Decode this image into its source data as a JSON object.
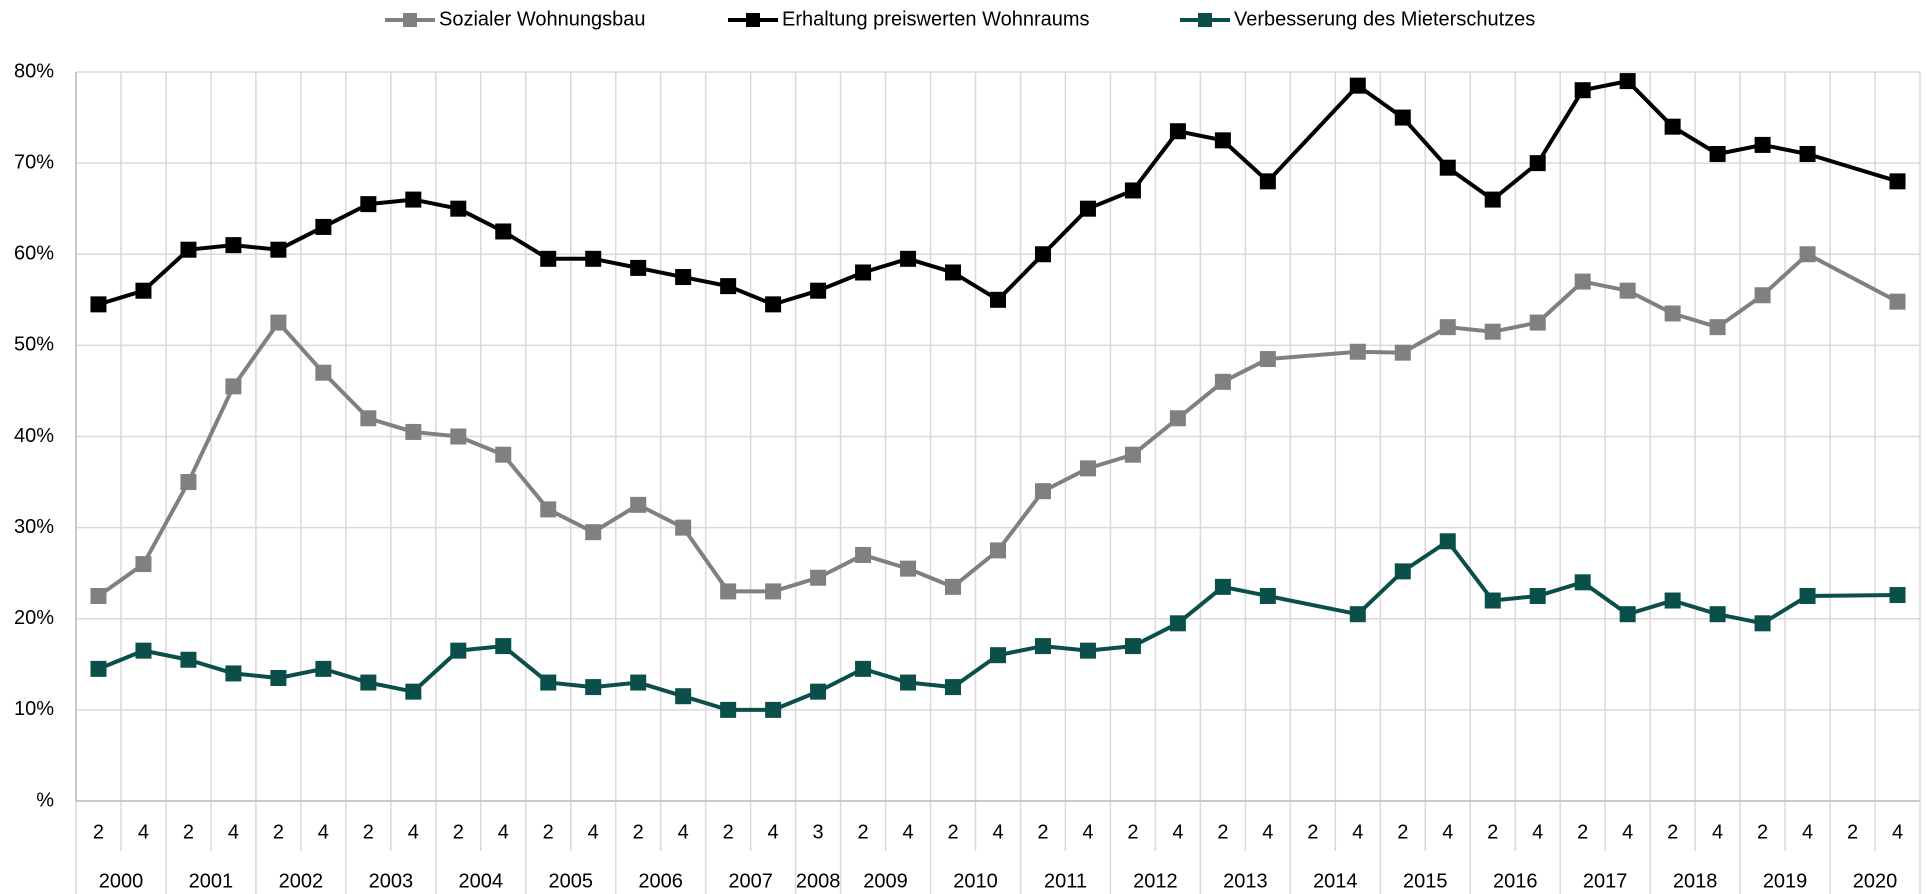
{
  "chart_data": {
    "type": "line",
    "groups": [
      {
        "name": "2000",
        "quarters": [
          "2",
          "4"
        ]
      },
      {
        "name": "2001",
        "quarters": [
          "2",
          "4"
        ]
      },
      {
        "name": "2002",
        "quarters": [
          "2",
          "4"
        ]
      },
      {
        "name": "2003",
        "quarters": [
          "2",
          "4"
        ]
      },
      {
        "name": "2004",
        "quarters": [
          "2",
          "4"
        ]
      },
      {
        "name": "2005",
        "quarters": [
          "2",
          "4"
        ]
      },
      {
        "name": "2006",
        "quarters": [
          "2",
          "4"
        ]
      },
      {
        "name": "2007",
        "quarters": [
          "2",
          "4"
        ]
      },
      {
        "name": "2008",
        "quarters": [
          "3"
        ]
      },
      {
        "name": "2009",
        "quarters": [
          "2",
          "4"
        ]
      },
      {
        "name": "2010",
        "quarters": [
          "2",
          "4"
        ]
      },
      {
        "name": "2011",
        "quarters": [
          "2",
          "4"
        ]
      },
      {
        "name": "2012",
        "quarters": [
          "2",
          "4"
        ]
      },
      {
        "name": "2013",
        "quarters": [
          "2",
          "4"
        ]
      },
      {
        "name": "2014",
        "quarters": [
          "2",
          "4"
        ]
      },
      {
        "name": "2015",
        "quarters": [
          "2",
          "4"
        ]
      },
      {
        "name": "2016",
        "quarters": [
          "2",
          "4"
        ]
      },
      {
        "name": "2017",
        "quarters": [
          "2",
          "4"
        ]
      },
      {
        "name": "2018",
        "quarters": [
          "2",
          "4"
        ]
      },
      {
        "name": "2019",
        "quarters": [
          "2",
          "4"
        ]
      },
      {
        "name": "2020",
        "quarters": [
          "2",
          "4"
        ]
      }
    ],
    "series": [
      {
        "name": "Sozialer Wohnungsbau",
        "color": "#808080",
        "values": [
          22.5,
          26,
          35,
          45.5,
          52.5,
          47,
          42,
          40.5,
          40,
          38,
          32,
          29.5,
          32.5,
          30,
          23,
          23,
          24.5,
          27,
          25.5,
          23.5,
          27.5,
          34,
          36.5,
          38,
          42,
          46,
          48.5,
          null,
          49.3,
          49.2,
          52,
          51.5,
          52.5,
          57,
          56,
          53.5,
          52,
          55.5,
          60,
          null,
          54.8
        ]
      },
      {
        "name": "Erhaltung preiswerten Wohnraums",
        "color": "#000000",
        "values": [
          54.5,
          56,
          60.5,
          61,
          60.5,
          63,
          65.5,
          66,
          65,
          62.5,
          59.5,
          59.5,
          58.5,
          57.5,
          56.5,
          54.5,
          56,
          58,
          59.5,
          58,
          55,
          60,
          65,
          67,
          73.5,
          72.5,
          68,
          null,
          78.5,
          75,
          69.5,
          66,
          70,
          78,
          79,
          74,
          71,
          72,
          71,
          null,
          68
        ]
      },
      {
        "name": "Verbesserung des Mieterschutzes",
        "color": "#0b4f4a",
        "values": [
          14.5,
          16.5,
          15.5,
          14,
          13.5,
          14.5,
          13,
          12,
          16.5,
          17,
          13,
          12.5,
          13,
          11.5,
          10,
          10,
          12,
          14.5,
          13,
          12.5,
          16,
          17,
          16.5,
          17,
          19.5,
          23.5,
          22.5,
          null,
          20.5,
          25.2,
          28.5,
          22,
          22.5,
          24,
          20.5,
          22,
          20.5,
          19.5,
          22.5,
          null,
          22.6
        ]
      }
    ],
    "ylim": [
      0,
      80
    ],
    "yticks": [
      {
        "value": 0,
        "label": "%"
      },
      {
        "value": 10,
        "label": "10%"
      },
      {
        "value": 20,
        "label": "20%"
      },
      {
        "value": 30,
        "label": "30%"
      },
      {
        "value": 40,
        "label": "40%"
      },
      {
        "value": 50,
        "label": "50%"
      },
      {
        "value": 60,
        "label": "60%"
      },
      {
        "value": 70,
        "label": "70%"
      },
      {
        "value": 80,
        "label": "80%"
      }
    ],
    "grid": true,
    "legend": "top"
  }
}
